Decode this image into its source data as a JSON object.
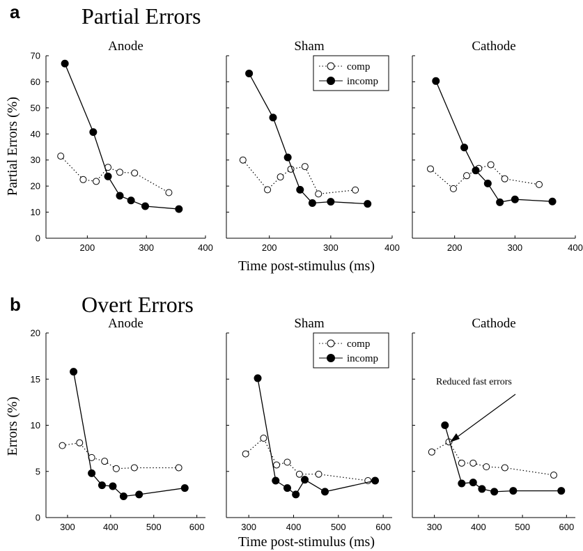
{
  "figure": {
    "sections": [
      {
        "letter": "a",
        "title": "Partial Errors",
        "ylabel": "Partial Errors (%)",
        "xlabel": "Time post-stimulus (ms)"
      },
      {
        "letter": "b",
        "title": "Overt Errors",
        "ylabel": "Errors (%)",
        "xlabel": "Time post-stimulus (ms)"
      }
    ],
    "legend": {
      "comp": "comp",
      "incomp": "incomp"
    },
    "annotation": "Reduced fast errors"
  },
  "chart_data": [
    {
      "type": "line",
      "title": "Anode",
      "xlim": [
        130,
        400
      ],
      "ylim": [
        0,
        70
      ],
      "xticks": [
        200,
        300,
        400
      ],
      "yticks": [
        0,
        10,
        20,
        30,
        40,
        50,
        60,
        70
      ],
      "series": [
        {
          "name": "comp",
          "style": "dotted-open",
          "points": [
            [
              155,
              31.5
            ],
            [
              193,
              22.5
            ],
            [
              215,
              21.8
            ],
            [
              235,
              27.2
            ],
            [
              255,
              25.3
            ],
            [
              280,
              25
            ],
            [
              338,
              17.5
            ]
          ]
        },
        {
          "name": "incomp",
          "style": "solid-filled",
          "points": [
            [
              162,
              67
            ],
            [
              210,
              40.7
            ],
            [
              235,
              23.7
            ],
            [
              255,
              16.3
            ],
            [
              274,
              14.5
            ],
            [
              298,
              12.3
            ],
            [
              355,
              11.2
            ]
          ]
        }
      ]
    },
    {
      "type": "line",
      "title": "Sham",
      "xlim": [
        130,
        400
      ],
      "ylim": [
        0,
        70
      ],
      "xticks": [
        200,
        300,
        400
      ],
      "yticks": [
        0,
        10,
        20,
        30,
        40,
        50,
        60,
        70
      ],
      "series": [
        {
          "name": "comp",
          "style": "dotted-open",
          "points": [
            [
              157,
              30
            ],
            [
              197,
              18.6
            ],
            [
              218,
              23.5
            ],
            [
              235,
              26.5
            ],
            [
              258,
              27.5
            ],
            [
              280,
              17
            ],
            [
              340,
              18.5
            ]
          ]
        },
        {
          "name": "incomp",
          "style": "solid-filled",
          "points": [
            [
              167,
              63.2
            ],
            [
              206,
              46.3
            ],
            [
              230,
              31
            ],
            [
              250,
              18.6
            ],
            [
              270,
              13.5
            ],
            [
              300,
              14
            ],
            [
              360,
              13.2
            ]
          ]
        }
      ]
    },
    {
      "type": "line",
      "title": "Cathode",
      "xlim": [
        130,
        400
      ],
      "ylim": [
        0,
        70
      ],
      "xticks": [
        200,
        300,
        400
      ],
      "yticks": [
        0,
        10,
        20,
        30,
        40,
        50,
        60,
        70
      ],
      "series": [
        {
          "name": "comp",
          "style": "dotted-open",
          "points": [
            [
              160,
              26.6
            ],
            [
              198,
              19
            ],
            [
              220,
              24
            ],
            [
              240,
              26.8
            ],
            [
              260,
              28.2
            ],
            [
              283,
              22.8
            ],
            [
              340,
              20.6
            ]
          ]
        },
        {
          "name": "incomp",
          "style": "solid-filled",
          "points": [
            [
              169,
              60.3
            ],
            [
              216,
              34.8
            ],
            [
              235,
              26
            ],
            [
              255,
              21
            ],
            [
              275,
              13.8
            ],
            [
              300,
              14.9
            ],
            [
              362,
              14.1
            ]
          ]
        }
      ]
    },
    {
      "type": "line",
      "title": "Anode",
      "xlim": [
        250,
        620
      ],
      "ylim": [
        0,
        20
      ],
      "xticks": [
        300,
        400,
        500,
        600
      ],
      "yticks": [
        0,
        5,
        10,
        15,
        20
      ],
      "series": [
        {
          "name": "comp",
          "style": "dotted-open",
          "points": [
            [
              288,
              7.8
            ],
            [
              328,
              8.1
            ],
            [
              356,
              6.5
            ],
            [
              386,
              6.1
            ],
            [
              413,
              5.3
            ],
            [
              455,
              5.4
            ],
            [
              558,
              5.4
            ]
          ]
        },
        {
          "name": "incomp",
          "style": "solid-filled",
          "points": [
            [
              314,
              15.8
            ],
            [
              356,
              4.8
            ],
            [
              380,
              3.5
            ],
            [
              405,
              3.4
            ],
            [
              430,
              2.3
            ],
            [
              466,
              2.5
            ],
            [
              572,
              3.2
            ]
          ]
        }
      ]
    },
    {
      "type": "line",
      "title": "Sham",
      "xlim": [
        250,
        620
      ],
      "ylim": [
        0,
        20
      ],
      "xticks": [
        300,
        400,
        500,
        600
      ],
      "yticks": [
        0,
        5,
        10,
        15,
        20
      ],
      "series": [
        {
          "name": "comp",
          "style": "dotted-open",
          "points": [
            [
              293,
              6.9
            ],
            [
              333,
              8.6
            ],
            [
              362,
              5.7
            ],
            [
              386,
              6
            ],
            [
              413,
              4.7
            ],
            [
              456,
              4.7
            ],
            [
              566,
              4
            ]
          ]
        },
        {
          "name": "incomp",
          "style": "solid-filled",
          "points": [
            [
              320,
              15.1
            ],
            [
              360,
              4
            ],
            [
              386,
              3.2
            ],
            [
              405,
              2.5
            ],
            [
              425,
              4.1
            ],
            [
              470,
              2.8
            ],
            [
              582,
              4
            ]
          ]
        }
      ]
    },
    {
      "type": "line",
      "title": "Cathode",
      "xlim": [
        250,
        620
      ],
      "ylim": [
        0,
        20
      ],
      "xticks": [
        300,
        400,
        500,
        600
      ],
      "yticks": [
        0,
        5,
        10,
        15,
        20
      ],
      "series": [
        {
          "name": "comp",
          "style": "dotted-open",
          "points": [
            [
              294,
              7.1
            ],
            [
              333,
              8.2
            ],
            [
              362,
              5.9
            ],
            [
              388,
              5.9
            ],
            [
              418,
              5.5
            ],
            [
              460,
              5.4
            ],
            [
              571,
              4.6
            ]
          ]
        },
        {
          "name": "incomp",
          "style": "solid-filled",
          "points": [
            [
              324,
              10
            ],
            [
              362,
              3.7
            ],
            [
              388,
              3.8
            ],
            [
              408,
              3.1
            ],
            [
              436,
              2.8
            ],
            [
              479,
              2.9
            ],
            [
              588,
              2.9
            ]
          ]
        }
      ]
    }
  ]
}
